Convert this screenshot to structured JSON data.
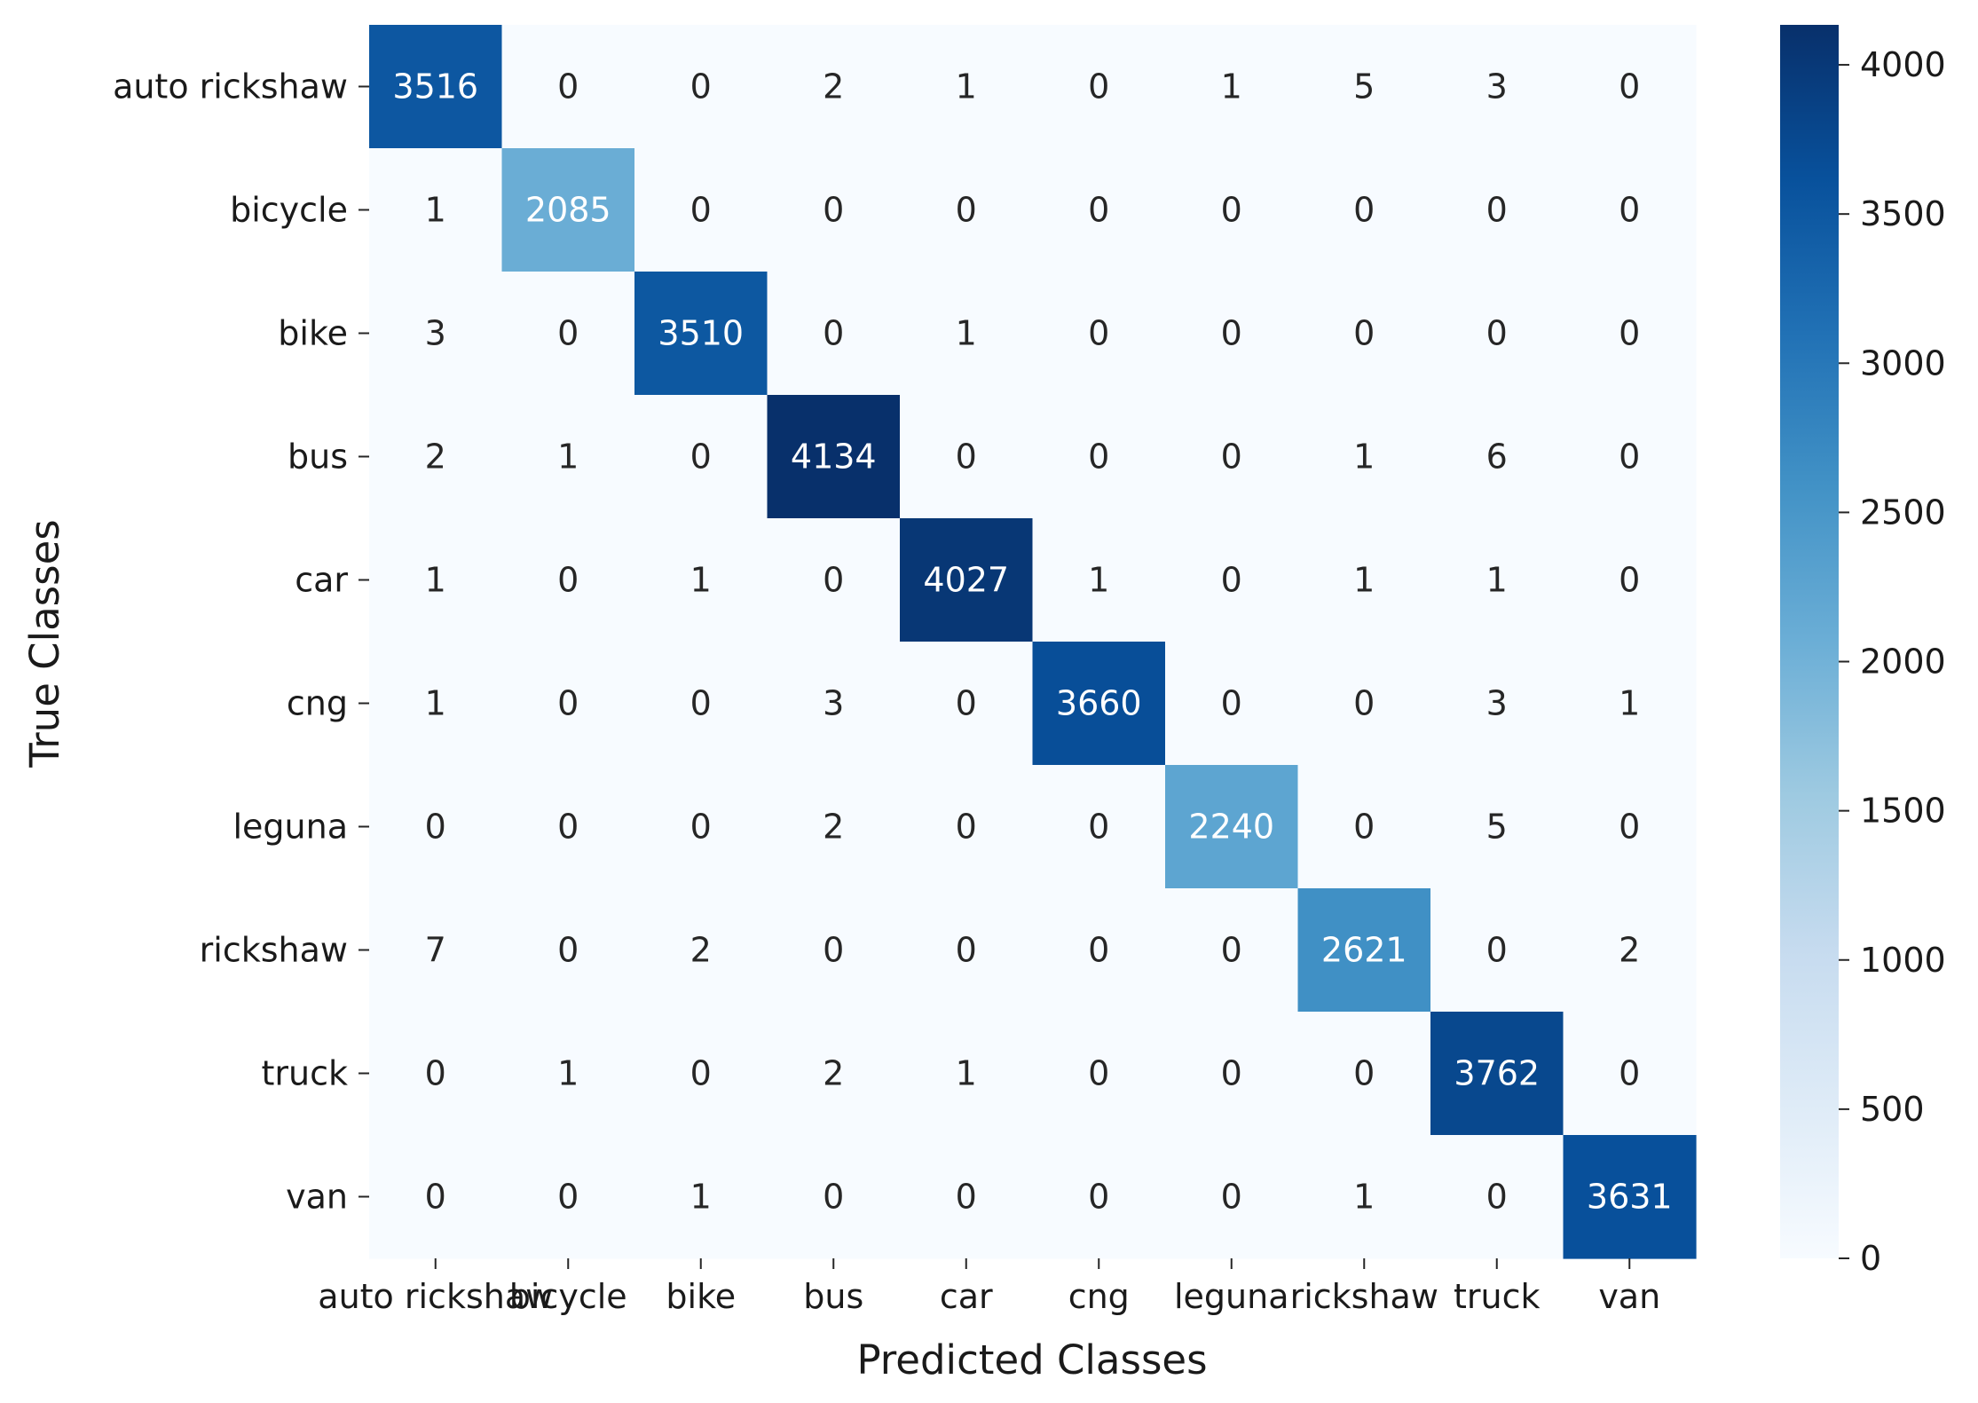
{
  "chart_data": {
    "type": "heatmap",
    "xlabel": "Predicted Classes",
    "ylabel": "True Classes",
    "x_categories": [
      "auto rickshaw",
      "bicycle",
      "bike",
      "bus",
      "car",
      "cng",
      "leguna",
      "rickshaw",
      "truck",
      "van"
    ],
    "y_categories": [
      "auto rickshaw",
      "bicycle",
      "bike",
      "bus",
      "car",
      "cng",
      "leguna",
      "rickshaw",
      "truck",
      "van"
    ],
    "values": [
      [
        3516,
        0,
        0,
        2,
        1,
        0,
        1,
        5,
        3,
        0
      ],
      [
        1,
        2085,
        0,
        0,
        0,
        0,
        0,
        0,
        0,
        0
      ],
      [
        3,
        0,
        3510,
        0,
        1,
        0,
        0,
        0,
        0,
        0
      ],
      [
        2,
        1,
        0,
        4134,
        0,
        0,
        0,
        1,
        6,
        0
      ],
      [
        1,
        0,
        1,
        0,
        4027,
        1,
        0,
        1,
        1,
        0
      ],
      [
        1,
        0,
        0,
        3,
        0,
        3660,
        0,
        0,
        3,
        1
      ],
      [
        0,
        0,
        0,
        2,
        0,
        0,
        2240,
        0,
        5,
        0
      ],
      [
        7,
        0,
        2,
        0,
        0,
        0,
        0,
        2621,
        0,
        2
      ],
      [
        0,
        1,
        0,
        2,
        1,
        0,
        0,
        0,
        3762,
        0
      ],
      [
        0,
        0,
        1,
        0,
        0,
        0,
        0,
        1,
        0,
        3631
      ]
    ],
    "colormap": "Blues",
    "colorbar": {
      "range": [
        0,
        4134
      ],
      "ticks": [
        0,
        500,
        1000,
        1500,
        2000,
        2500,
        3000,
        3500,
        4000
      ]
    },
    "colors": {
      "scale_low": "#f7fbff",
      "scale_high": "#08306b",
      "text_dark": "#262626",
      "text_light": "#ffffff"
    }
  }
}
